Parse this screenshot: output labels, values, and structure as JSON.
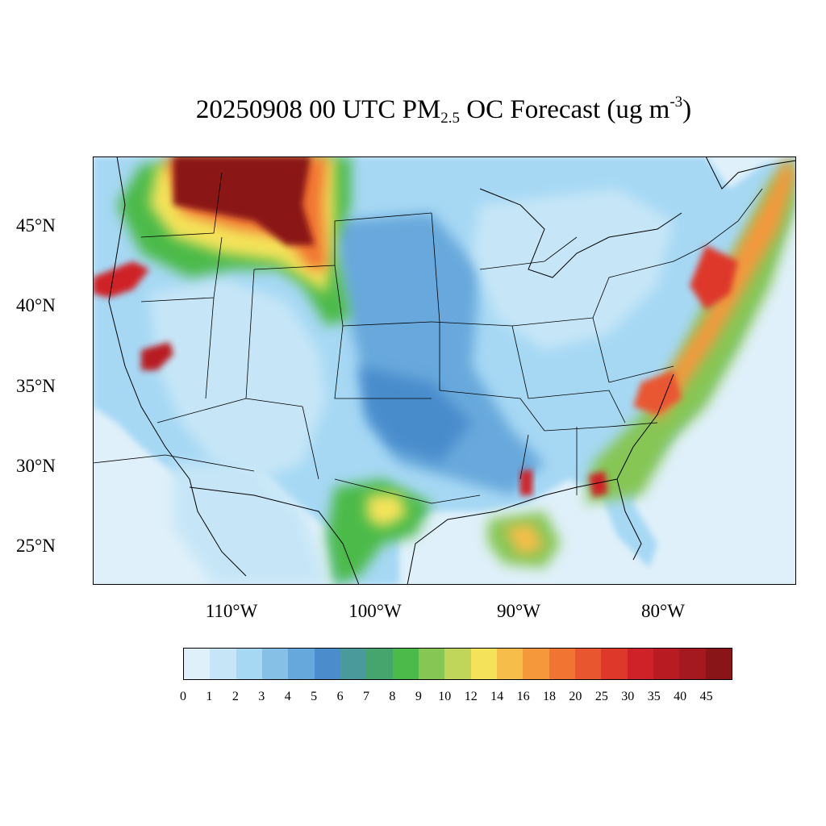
{
  "title": {
    "prefix": "20250908 00 UTC PM",
    "subscript": "2.5",
    "middle": " OC Forecast (ug m",
    "superscript": "-3",
    "suffix": ")"
  },
  "lat_labels": [
    "45°N",
    "40°N",
    "35°N",
    "30°N",
    "25°N"
  ],
  "lon_labels": [
    "110°W",
    "100°W",
    "90°W",
    "80°W"
  ],
  "colorbar": {
    "labels": [
      "0",
      "1",
      "2",
      "3",
      "4",
      "5",
      "6",
      "7",
      "8",
      "9",
      "10",
      "12",
      "14",
      "16",
      "18",
      "20",
      "25",
      "30",
      "35",
      "40",
      "45"
    ],
    "colors": [
      "#dff0fa",
      "#c6e6f7",
      "#a6d8f4",
      "#86c0e6",
      "#67a8dc",
      "#4a8ccc",
      "#4a9a9c",
      "#46a56c",
      "#4bba4a",
      "#86c654",
      "#c0d65a",
      "#f4e35a",
      "#f6bd4a",
      "#f5983c",
      "#f17432",
      "#e85630",
      "#de382a",
      "#cf2128",
      "#b81c22",
      "#a3191f",
      "#8a1519"
    ]
  },
  "colors": {
    "ocean": "#dff0fa",
    "land_base": "#a6d8f4",
    "border": "#000000"
  }
}
